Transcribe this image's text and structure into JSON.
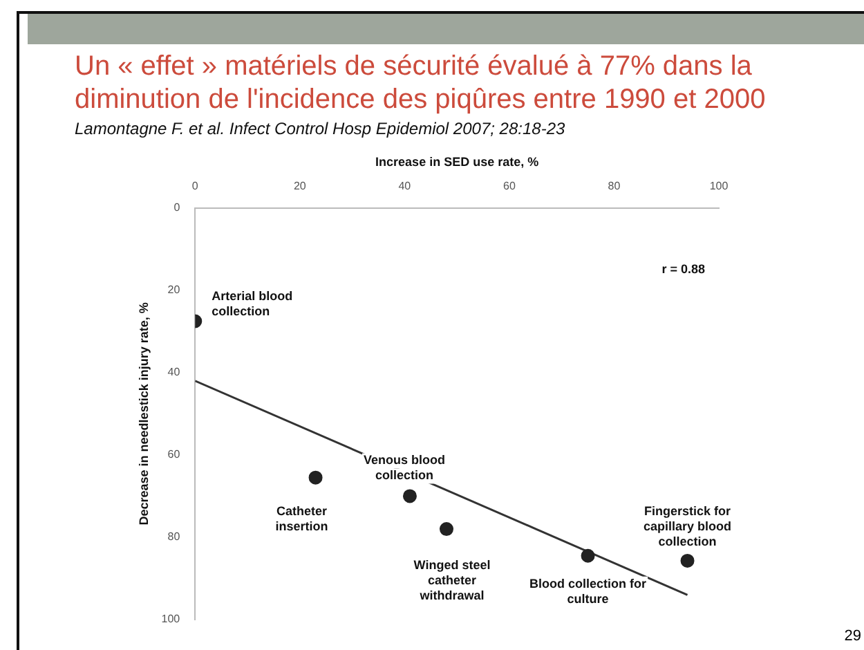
{
  "chart_data": {
    "type": "scatter",
    "title": "Un « effet » matériels de sécurité évalué à 77% dans la diminution de l'incidence des piqûres entre 1990 et 2000",
    "subtitle": "Lamontagne F. et al. Infect Control Hosp Epidemiol 2007; 28:18-23",
    "xlabel": "Increase in SED use rate, %",
    "ylabel": "Decrease in needlestick injury rate, %",
    "xlim": [
      0,
      100
    ],
    "xticks": [
      0,
      20,
      40,
      60,
      80,
      100
    ],
    "ylim": [
      100,
      0
    ],
    "yticks": [
      0,
      20,
      40,
      60,
      80,
      100
    ],
    "grid": false,
    "legend": false,
    "marker": "circle",
    "series": [
      {
        "type": "scatter",
        "color": "#222222",
        "x": [
          0,
          23,
          41,
          48,
          75,
          94
        ],
        "values": [
          27.5,
          65.5,
          70,
          78,
          84.5,
          85.7
        ]
      },
      {
        "type": "line",
        "color": "#333333",
        "x": [
          0,
          94
        ],
        "values": [
          42,
          94
        ],
        "marker": "none",
        "line_style": "solid"
      }
    ],
    "annotations": [
      {
        "text": "Arterial blood collection",
        "x": 0,
        "y": 27.5
      },
      {
        "text": "Catheter insertion",
        "x": 23,
        "y": 65.5
      },
      {
        "text": "Venous blood collection",
        "x": 41,
        "y": 70
      },
      {
        "text": "Winged steel catheter withdrawal",
        "x": 48,
        "y": 78
      },
      {
        "text": "Blood collection for culture",
        "x": 75,
        "y": 84.5
      },
      {
        "text": "Fingerstick for capillary blood collection",
        "x": 94,
        "y": 85.7
      },
      "r = 0.88",
      "29"
    ]
  }
}
